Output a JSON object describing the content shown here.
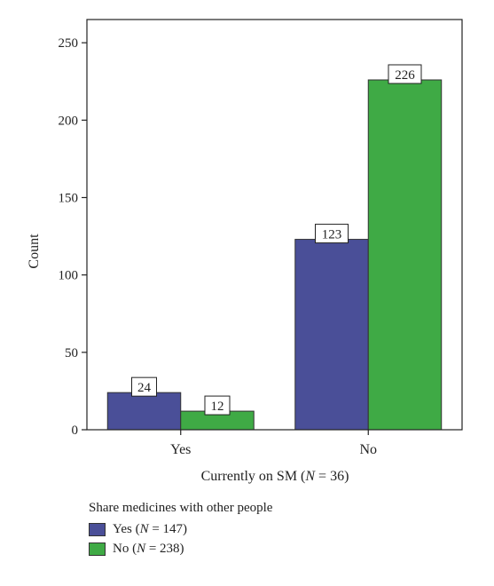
{
  "chart_data": {
    "type": "bar",
    "categories": [
      "Yes",
      "No"
    ],
    "series": [
      {
        "name": "Yes (N = 147)",
        "name_prefix": "Yes (",
        "name_var": "N",
        "name_suffix": " = 147)",
        "values": [
          24,
          123
        ],
        "color": "#4a4f98"
      },
      {
        "name": "No (N = 238)",
        "name_prefix": "No (",
        "name_var": "N",
        "name_suffix": " = 238)",
        "values": [
          12,
          226
        ],
        "color": "#3faa45"
      }
    ],
    "xlabel": "Currently on SM (N = 36)",
    "xlabel_prefix": "Currently on SM (",
    "xlabel_var": "N",
    "xlabel_suffix": " = 36)",
    "ylabel": "Count",
    "ylim": [
      0,
      265
    ],
    "yticks": [
      0,
      50,
      100,
      150,
      200,
      250
    ],
    "legend_title": "Share medicines with other people",
    "legend_position": "bottom-left",
    "data_labels": true,
    "grid": false
  }
}
